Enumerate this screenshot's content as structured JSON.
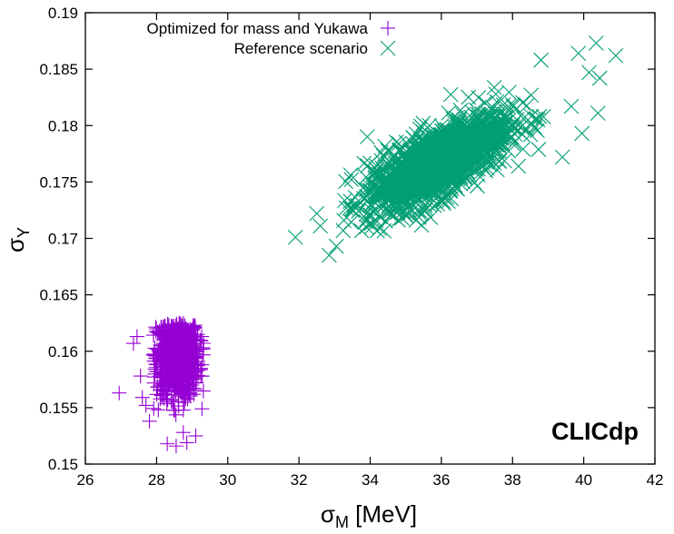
{
  "chart_data": {
    "type": "scatter",
    "title": "",
    "brand_label": "CLICdp",
    "xlabel": {
      "symbol": "σ",
      "subscript": "M",
      "unit": " [MeV]"
    },
    "ylabel": {
      "symbol": "σ",
      "subscript": "Y"
    },
    "xlim": [
      26,
      42
    ],
    "ylim": [
      0.15,
      0.19
    ],
    "x_ticks": [
      26,
      28,
      30,
      32,
      34,
      36,
      38,
      40,
      42
    ],
    "y_ticks": [
      0.15,
      0.155,
      0.16,
      0.165,
      0.17,
      0.175,
      0.18,
      0.185,
      0.19
    ],
    "x_tick_labels": [
      "26",
      "28",
      "30",
      "32",
      "34",
      "36",
      "38",
      "40",
      "42"
    ],
    "y_tick_labels": [
      "0.15",
      "0.155",
      "0.16",
      "0.165",
      "0.17",
      "0.175",
      "0.18",
      "0.185",
      "0.19"
    ],
    "grid": false,
    "legend_position": "top-left",
    "series": [
      {
        "name": "Optimized for mass and Yukawa",
        "marker": "plus",
        "color": "#9400d3",
        "cluster": {
          "center": [
            28.6,
            0.1595
          ],
          "spread": [
            0.3,
            0.0018
          ],
          "count": 900,
          "x_range": [
            27.9,
            29.4
          ],
          "y_range": [
            0.1535,
            0.1625
          ]
        },
        "x": [
          26.95,
          27.35,
          27.6,
          27.45,
          27.8,
          28.05,
          28.3,
          28.55,
          28.85,
          29.1,
          27.7,
          27.55,
          28.1,
          28.75
        ],
        "y": [
          0.1563,
          0.1607,
          0.1559,
          0.1613,
          0.1538,
          0.1548,
          0.1518,
          0.1516,
          0.1519,
          0.1525,
          0.1552,
          0.1578,
          0.157,
          0.1528
        ]
      },
      {
        "name": "Reference scenario",
        "marker": "cross",
        "color": "#009e73",
        "cluster": {
          "center": [
            35.9,
            0.1767
          ],
          "spread": [
            1.0,
            0.0022
          ],
          "correlation": 0.72,
          "count": 1400,
          "x_range": [
            33.2,
            39.2
          ],
          "y_range": [
            0.1705,
            0.1858
          ]
        },
        "x": [
          31.9,
          32.6,
          32.85,
          33.05,
          32.5,
          39.85,
          40.35,
          40.9,
          40.15,
          39.65,
          40.4,
          39.95,
          40.45,
          39.4,
          38.8
        ],
        "y": [
          0.1701,
          0.1711,
          0.1685,
          0.1693,
          0.1722,
          0.1864,
          0.1873,
          0.1862,
          0.1847,
          0.1817,
          0.1811,
          0.1793,
          0.1842,
          0.1772,
          0.1858
        ]
      }
    ]
  }
}
